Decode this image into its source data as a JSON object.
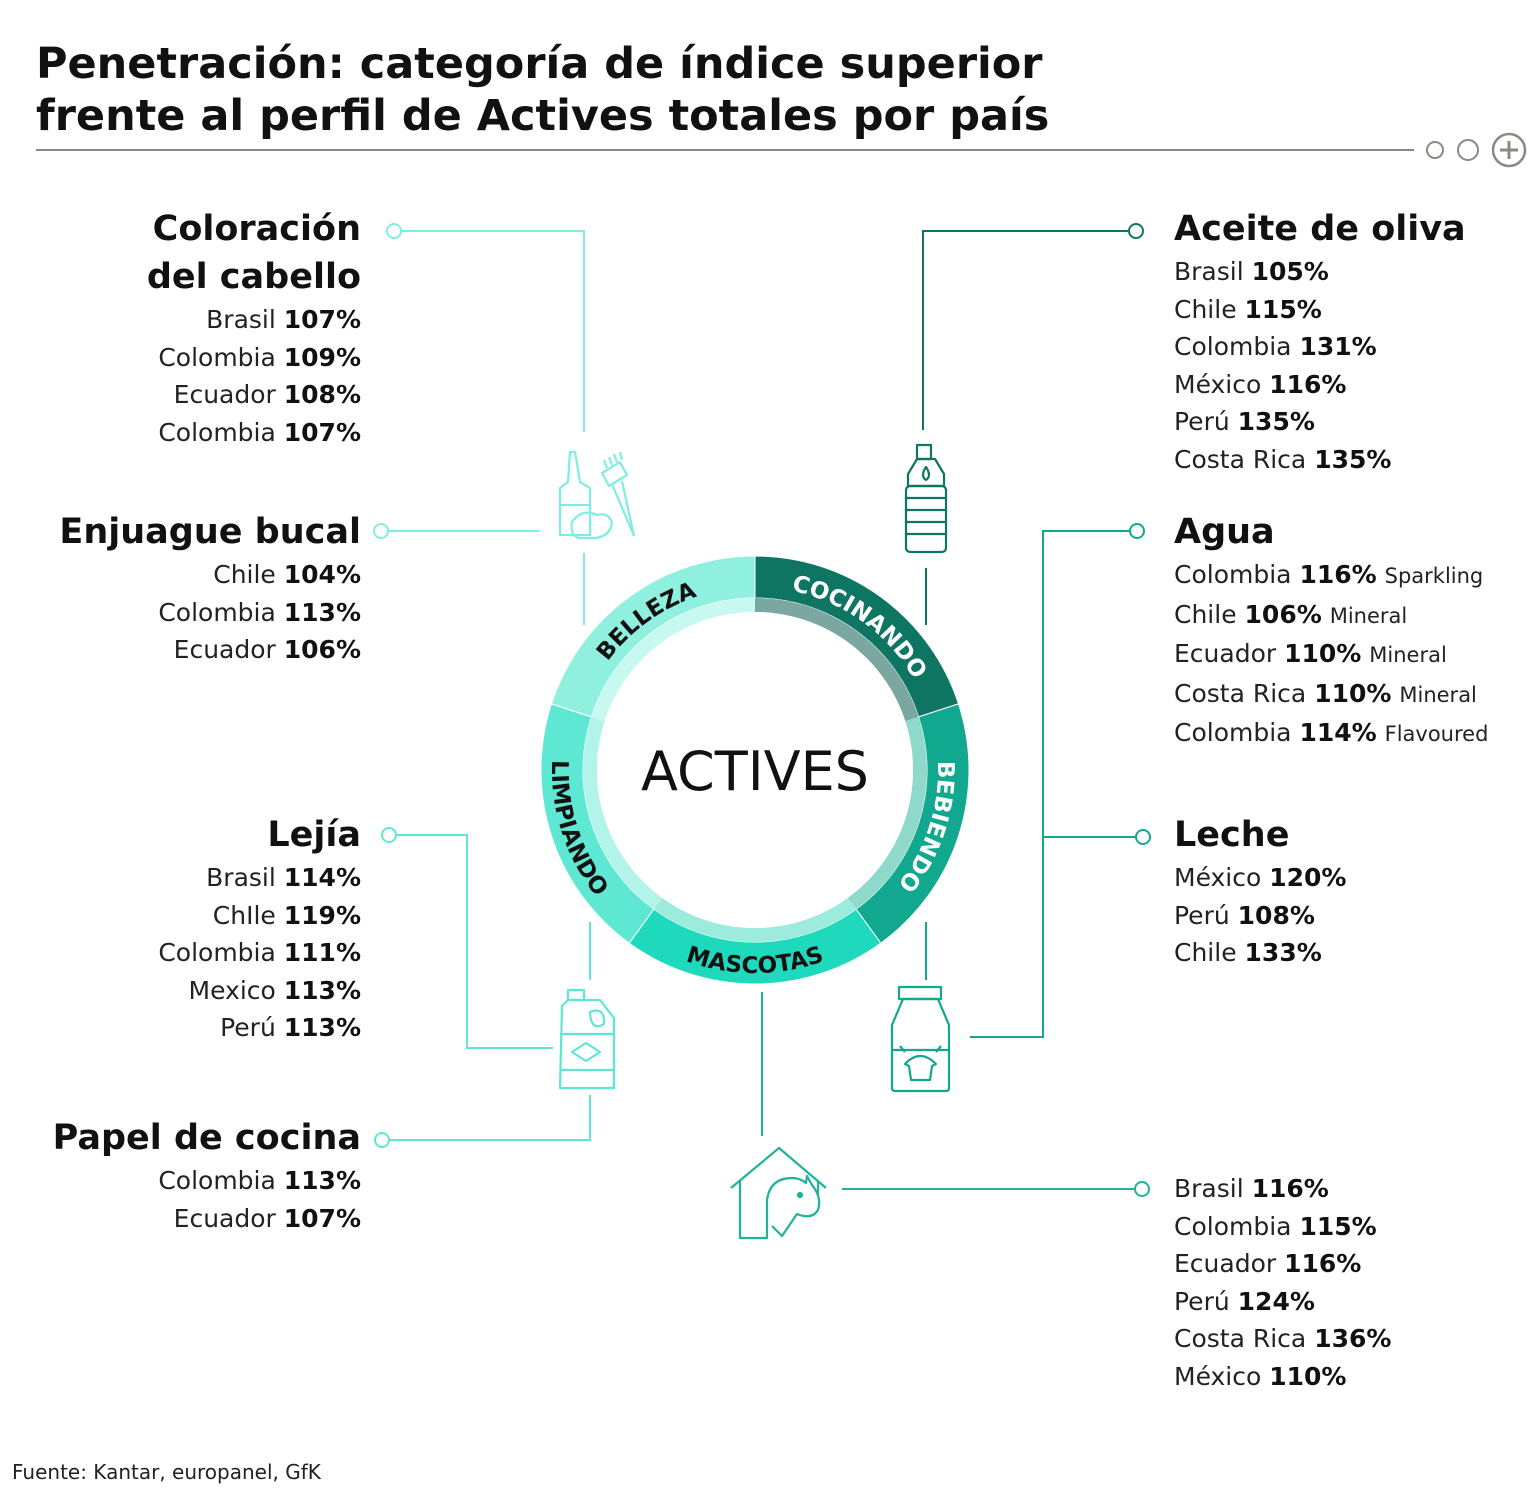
{
  "title": {
    "line1": "Penetración: categoría de índice superior",
    "line2": "frente al perfil de Actives totales por país"
  },
  "colors": {
    "belleza": "#8ff0df",
    "cocinando": "#0e7563",
    "bebiendo": "#12a88f",
    "mascotas": "#1fd9bd",
    "limpiando": "#5ee8d3",
    "line_light": "#7feee0",
    "line_dark": "#0e7563",
    "line_mid": "#1fb39c"
  },
  "center": "ACTIVES",
  "segments": {
    "belleza": "BELLEZA",
    "cocinando": "COCINANDO",
    "bebiendo": "BEBIENDO",
    "mascotas": "MASCOTAS",
    "limpiando": "LIMPIANDO"
  },
  "categories": {
    "coloracion": {
      "title1": "Coloración",
      "title2": "del cabello",
      "rows": [
        {
          "country": "Brasil",
          "pct": "107%"
        },
        {
          "country": "Colombia",
          "pct": "109%"
        },
        {
          "country": "Ecuador",
          "pct": "108%"
        },
        {
          "country": "Colombia",
          "pct": "107%"
        }
      ]
    },
    "enjuague": {
      "title": "Enjuague bucal",
      "rows": [
        {
          "country": "Chile",
          "pct": "104%"
        },
        {
          "country": "Colombia",
          "pct": "113%"
        },
        {
          "country": "Ecuador",
          "pct": "106%"
        }
      ]
    },
    "lejia": {
      "title": "Lejía",
      "rows": [
        {
          "country": "Brasil",
          "pct": "114%"
        },
        {
          "country": "ChIle",
          "pct": "119%"
        },
        {
          "country": "Colombia",
          "pct": "111%"
        },
        {
          "country": "Mexico",
          "pct": "113%"
        },
        {
          "country": "Perú",
          "pct": "113%"
        }
      ]
    },
    "papel": {
      "title": "Papel de cocina",
      "rows": [
        {
          "country": "Colombia",
          "pct": "113%"
        },
        {
          "country": "Ecuador",
          "pct": "107%"
        }
      ]
    },
    "aceite": {
      "title": "Aceite de oliva",
      "rows": [
        {
          "country": "Brasil",
          "pct": "105%"
        },
        {
          "country": "Chile",
          "pct": "115%"
        },
        {
          "country": "Colombia",
          "pct": "131%"
        },
        {
          "country": "México",
          "pct": "116%"
        },
        {
          "country": "Perú",
          "pct": "135%"
        },
        {
          "country": "Costa Rica",
          "pct": "135%"
        }
      ]
    },
    "agua": {
      "title": "Agua",
      "rows": [
        {
          "country": "Colombia",
          "pct": "116%",
          "note": "Sparkling"
        },
        {
          "country": "Chile",
          "pct": "106%",
          "note": "Mineral"
        },
        {
          "country": "Ecuador",
          "pct": "110%",
          "note": "Mineral"
        },
        {
          "country": "Costa Rica",
          "pct": "110%",
          "note": "Mineral"
        },
        {
          "country": "Colombia",
          "pct": "114%",
          "note": "Flavoured"
        }
      ]
    },
    "leche": {
      "title": "Leche",
      "rows": [
        {
          "country": "México",
          "pct": "120%"
        },
        {
          "country": "Perú",
          "pct": "108%"
        },
        {
          "country": "Chile",
          "pct": "133%"
        }
      ]
    },
    "mascotas": {
      "rows": [
        {
          "country": "Brasil",
          "pct": "116%"
        },
        {
          "country": "Colombia",
          "pct": "115%"
        },
        {
          "country": "Ecuador",
          "pct": "116%"
        },
        {
          "country": "Perú",
          "pct": "124%"
        },
        {
          "country": "Costa Rica",
          "pct": "136%"
        },
        {
          "country": "México",
          "pct": "110%"
        }
      ]
    }
  },
  "icons": {
    "hair_dye": "hair-dye-icon",
    "oil_bottle": "olive-oil-bottle-icon",
    "bleach": "bleach-bottle-icon",
    "milk": "milk-bottle-icon",
    "pet_house": "pet-house-icon",
    "menu_dots": "circle-icon",
    "plus": "plus-icon"
  },
  "source": "Fuente: Kantar, europanel, GfK"
}
